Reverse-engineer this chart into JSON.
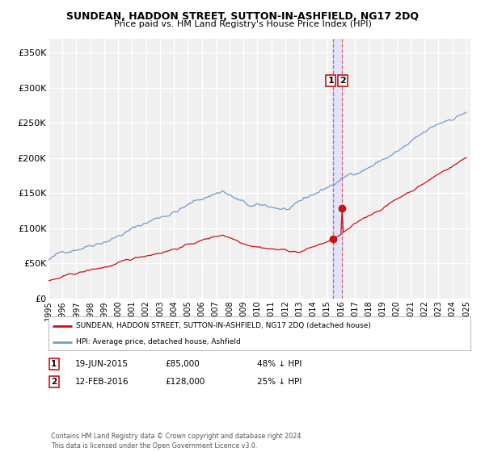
{
  "title": "SUNDEAN, HADDON STREET, SUTTON-IN-ASHFIELD, NG17 2DQ",
  "subtitle": "Price paid vs. HM Land Registry's House Price Index (HPI)",
  "ylim": [
    0,
    370000
  ],
  "yticks": [
    0,
    50000,
    100000,
    150000,
    200000,
    250000,
    300000,
    350000
  ],
  "ytick_labels": [
    "£0",
    "£50K",
    "£100K",
    "£150K",
    "£200K",
    "£250K",
    "£300K",
    "£350K"
  ],
  "hpi_color": "#7799cc",
  "price_color": "#cc1111",
  "dashed_line_color": "#cc4444",
  "legend_label_red": "SUNDEAN, HADDON STREET, SUTTON-IN-ASHFIELD, NG17 2DQ (detached house)",
  "legend_label_blue": "HPI: Average price, detached house, Ashfield",
  "annotation1_date": "19-JUN-2015",
  "annotation1_price": "£85,000",
  "annotation1_hpi": "48% ↓ HPI",
  "annotation2_date": "12-FEB-2016",
  "annotation2_price": "£128,000",
  "annotation2_hpi": "25% ↓ HPI",
  "footer": "Contains HM Land Registry data © Crown copyright and database right 2024.\nThis data is licensed under the Open Government Licence v3.0.",
  "background_color": "#ffffff",
  "plot_bg_color": "#f0f0f0",
  "grid_color": "#ffffff",
  "shade_color": "#ddddff"
}
